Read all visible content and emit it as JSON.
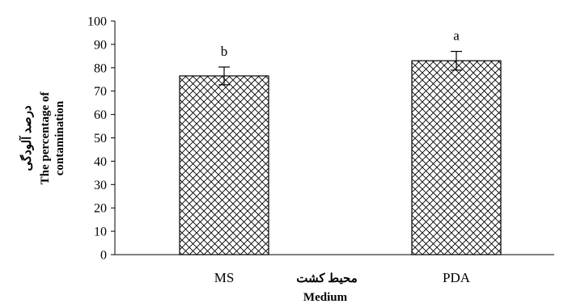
{
  "chart_data": {
    "type": "bar",
    "categories": [
      "MS",
      "PDA"
    ],
    "values": [
      76.5,
      83
    ],
    "errors": [
      3.8,
      4.0
    ],
    "significance_letters": [
      "b",
      "a"
    ],
    "ylim": [
      0,
      100
    ],
    "y_ticks": [
      "0",
      "10",
      "20",
      "30",
      "40",
      "50",
      "60",
      "70",
      "80",
      "90",
      "100"
    ],
    "ylabel_fa": "درصد آلودگی",
    "ylabel_en_line1": "The percentage of",
    "ylabel_en_line2": "contamination",
    "xlabel_fa": "محیط کشت",
    "xlabel_en": "Medium",
    "bar_fill": "crosshatch",
    "grid": false,
    "colors": {
      "bar_stroke": "#000000",
      "hatch": "#000000",
      "background": "#ffffff"
    }
  }
}
